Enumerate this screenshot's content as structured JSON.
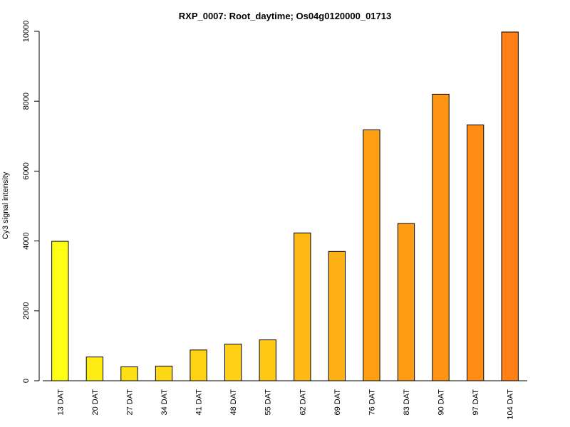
{
  "chart_data": {
    "type": "bar",
    "title": "RXP_0007: Root_daytime; Os04g0120000_01713",
    "xlabel": "",
    "ylabel": "Cy3 signal intensity",
    "ylim": [
      0,
      10000
    ],
    "yticks": [
      0,
      2000,
      4000,
      6000,
      8000,
      10000
    ],
    "categories": [
      "13 DAT",
      "20 DAT",
      "27 DAT",
      "34 DAT",
      "41 DAT",
      "48 DAT",
      "55 DAT",
      "62 DAT",
      "69 DAT",
      "76 DAT",
      "83 DAT",
      "90 DAT",
      "97 DAT",
      "104 DAT"
    ],
    "values": [
      3990,
      680,
      400,
      420,
      880,
      1050,
      1170,
      4230,
      3700,
      7180,
      4500,
      8200,
      7320,
      9980
    ],
    "colors": [
      "#FFFF14",
      "#FFEC14",
      "#FFE014",
      "#FFD814",
      "#FFD314",
      "#FFD014",
      "#FFC814",
      "#FFB814",
      "#FFB014",
      "#FFA014",
      "#FF9C14",
      "#FF9414",
      "#FF8C14",
      "#FF8014"
    ],
    "grid": false,
    "legend": "none"
  }
}
